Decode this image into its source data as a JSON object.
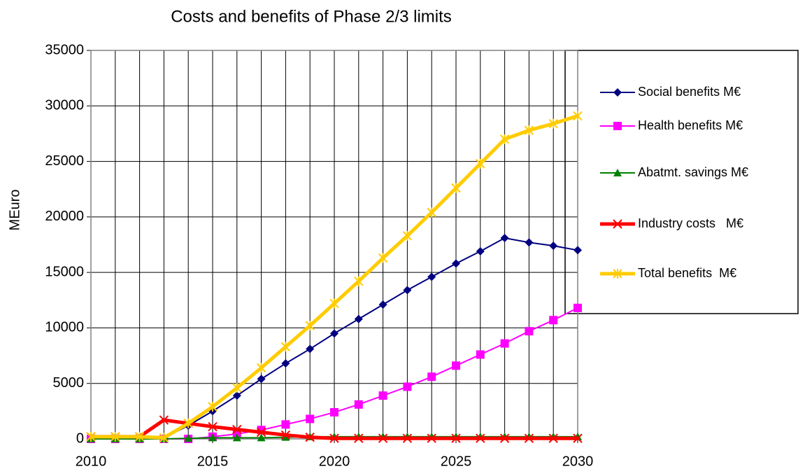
{
  "chart_data": {
    "type": "line",
    "title": "Costs and benefits of Phase 2/3 limits",
    "y_label": "MEuro",
    "x": [
      2010,
      2011,
      2012,
      2013,
      2014,
      2015,
      2016,
      2017,
      2018,
      2019,
      2020,
      2021,
      2022,
      2023,
      2024,
      2025,
      2026,
      2027,
      2028,
      2029,
      2030
    ],
    "xlim": [
      2010,
      2030
    ],
    "xticks": [
      2010,
      2015,
      2020,
      2025,
      2030
    ],
    "ylim": [
      0,
      35000
    ],
    "yticks": [
      0,
      5000,
      10000,
      15000,
      20000,
      25000,
      30000,
      35000
    ],
    "grid": true,
    "legend": "right",
    "series": [
      {
        "name": "Social benefits M€",
        "color": "#000080",
        "marker": "diamond",
        "line_width": 2,
        "values": [
          100,
          100,
          100,
          100,
          1200,
          2500,
          3900,
          5400,
          6800,
          8100,
          9500,
          10800,
          12100,
          13400,
          14600,
          15800,
          16900,
          18100,
          17700,
          17400,
          17000
        ]
      },
      {
        "name": "Health benefits M€",
        "color": "#ff00ff",
        "marker": "square",
        "line_width": 2,
        "values": [
          0,
          0,
          0,
          0,
          0,
          200,
          450,
          800,
          1300,
          1800,
          2400,
          3100,
          3900,
          4700,
          5600,
          6600,
          7600,
          8600,
          9700,
          10700,
          11800
        ]
      },
      {
        "name": "Abatmt. savings M€",
        "color": "#008000",
        "marker": "triangle",
        "line_width": 2,
        "values": [
          0,
          0,
          0,
          0,
          50,
          100,
          100,
          100,
          150,
          200,
          200,
          200,
          200,
          200,
          200,
          200,
          200,
          200,
          200,
          200,
          200
        ]
      },
      {
        "name": "Industry costs   M€",
        "color": "#ff0000",
        "marker": "x",
        "line_width": 5,
        "values": [
          200,
          200,
          200,
          1700,
          1400,
          1100,
          850,
          600,
          350,
          150,
          50,
          50,
          50,
          50,
          50,
          50,
          50,
          50,
          50,
          50,
          50
        ]
      },
      {
        "name": "Total benefits  M€",
        "color": "#ffcc00",
        "marker": "star",
        "line_width": 5,
        "values": [
          200,
          200,
          200,
          100,
          1400,
          2900,
          4600,
          6400,
          8300,
          10200,
          12200,
          14200,
          16300,
          18300,
          20400,
          22600,
          24800,
          27000,
          27800,
          28400,
          29100
        ]
      }
    ]
  }
}
